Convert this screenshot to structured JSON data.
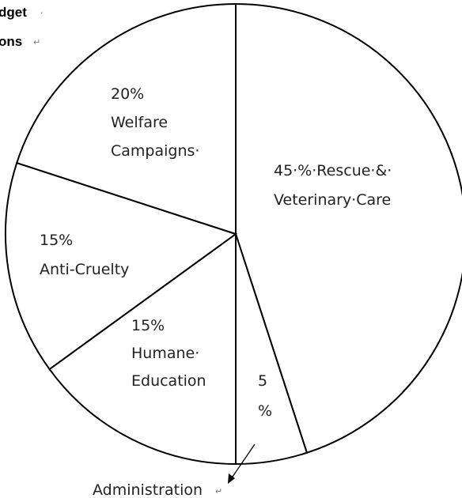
{
  "chart_data": {
    "type": "pie",
    "title_lines": [
      "dget",
      "ons"
    ],
    "slices": [
      {
        "label_lines": [
          "45·%·Rescue·&·",
          "Veterinary·Care"
        ],
        "value": 45
      },
      {
        "label_lines": [
          "5",
          "%"
        ],
        "value": 5
      },
      {
        "label_lines": [
          "15%",
          "Humane·",
          "Education"
        ],
        "value": 15
      },
      {
        "label_lines": [
          "15%",
          "Anti-Cruelty"
        ],
        "value": 15
      },
      {
        "label_lines": [
          "20%",
          "Welfare",
          "Campaigns·"
        ],
        "value": 20
      }
    ],
    "annotations": [
      {
        "text": "Administration",
        "points_to_slice": 1
      }
    ],
    "start_angle": "12 o'clock",
    "direction": "clockwise",
    "fill": "#ffffff",
    "stroke": "#000000"
  }
}
